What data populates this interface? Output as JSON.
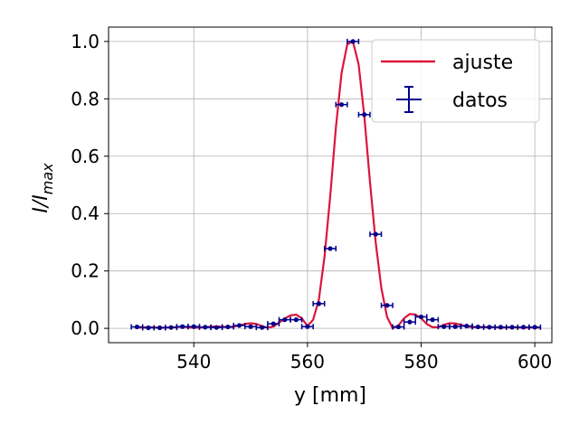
{
  "chart_data": {
    "type": "scatter",
    "xlabel": "y [mm]",
    "ylabel": "I/I_max",
    "ylabel_main": "I/I",
    "ylabel_sub": "max",
    "xlim": [
      525,
      603
    ],
    "ylim": [
      -0.05,
      1.05
    ],
    "xticks": [
      540,
      560,
      580,
      600
    ],
    "yticks": [
      0.0,
      0.2,
      0.4,
      0.6,
      0.8,
      1.0
    ],
    "xtick_labels": [
      "540",
      "560",
      "580",
      "600"
    ],
    "ytick_labels": [
      "0.0",
      "0.2",
      "0.4",
      "0.6",
      "0.8",
      "1.0"
    ],
    "grid": true,
    "legend_position": "top-right",
    "series": [
      {
        "name": "ajuste",
        "kind": "line",
        "color": "#dc143c",
        "x": [
          530,
          532,
          534,
          536,
          538,
          540,
          542,
          544,
          546,
          547,
          548,
          549,
          550,
          551,
          552,
          553,
          554,
          555,
          556,
          557,
          558,
          559,
          560,
          561,
          562,
          563,
          564,
          565,
          566,
          567,
          568,
          569,
          570,
          571,
          572,
          573,
          574,
          575,
          576,
          577,
          578,
          579,
          580,
          581,
          582,
          583,
          584,
          585,
          586,
          587,
          588,
          590,
          592,
          594,
          596,
          598,
          600,
          601
        ],
        "y": [
          0.002,
          0.004,
          0.002,
          0.003,
          0.006,
          0.002,
          0.004,
          0.007,
          0.004,
          0.006,
          0.01,
          0.015,
          0.018,
          0.015,
          0.008,
          0.002,
          0.006,
          0.02,
          0.034,
          0.045,
          0.048,
          0.035,
          0.008,
          0.03,
          0.1,
          0.25,
          0.46,
          0.7,
          0.89,
          0.99,
          1.0,
          0.92,
          0.74,
          0.51,
          0.3,
          0.14,
          0.04,
          0.0,
          0.01,
          0.035,
          0.05,
          0.048,
          0.035,
          0.015,
          0.004,
          0.004,
          0.012,
          0.018,
          0.017,
          0.012,
          0.006,
          0.003,
          0.005,
          0.002,
          0.004,
          0.002,
          0.003,
          0.002
        ]
      },
      {
        "name": "datos",
        "kind": "errorbar",
        "color": "#00008b",
        "x_error": 1,
        "x": [
          530,
          532,
          534,
          536,
          538,
          540,
          542,
          544,
          546,
          548,
          550,
          552,
          554,
          556,
          558,
          560,
          562,
          564,
          566,
          568,
          570,
          572,
          574,
          576,
          578,
          580,
          582,
          584,
          586,
          588,
          590,
          592,
          594,
          596,
          598,
          600
        ],
        "y": [
          0.005,
          0.002,
          0.002,
          0.003,
          0.006,
          0.006,
          0.004,
          0.003,
          0.005,
          0.01,
          0.006,
          0.003,
          0.016,
          0.03,
          0.03,
          0.006,
          0.086,
          0.278,
          0.78,
          1.0,
          0.745,
          0.328,
          0.08,
          0.005,
          0.022,
          0.04,
          0.03,
          0.006,
          0.006,
          0.008,
          0.005,
          0.004,
          0.004,
          0.004,
          0.004,
          0.004
        ]
      }
    ]
  }
}
